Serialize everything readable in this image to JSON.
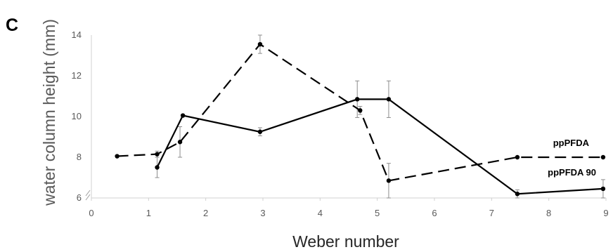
{
  "panel_letter": "C",
  "chart_data": {
    "type": "line",
    "title": "",
    "xlabel": "Weber number",
    "ylabel": "water column height (mm)",
    "xlim": [
      0,
      9
    ],
    "ylim": [
      6,
      14
    ],
    "x_ticks": [
      0,
      1,
      2,
      3,
      4,
      5,
      6,
      7,
      8,
      9
    ],
    "y_ticks": [
      6,
      8,
      10,
      12,
      14
    ],
    "grid": false,
    "legend": "none (series labeled directly at right)",
    "series": [
      {
        "name": "ppPFDA",
        "style": "dashed",
        "color": "#000000",
        "x": [
          0.45,
          1.15,
          1.55,
          2.95,
          4.7,
          5.2,
          7.45,
          8.95
        ],
        "y": [
          8.05,
          8.15,
          8.75,
          13.55,
          10.3,
          6.85,
          8.0,
          8.0
        ],
        "err": [
          0,
          0.15,
          0.75,
          0.45,
          0.2,
          0.85,
          0,
          0
        ]
      },
      {
        "name": "ppPFDA 90",
        "style": "solid",
        "color": "#000000",
        "x": [
          1.15,
          1.6,
          2.95,
          4.65,
          5.2,
          7.45,
          8.95
        ],
        "y": [
          7.5,
          10.05,
          9.25,
          10.85,
          10.85,
          6.2,
          6.45
        ],
        "err": [
          0.5,
          0,
          0.2,
          0.9,
          0.9,
          0.2,
          0.45
        ]
      }
    ]
  }
}
